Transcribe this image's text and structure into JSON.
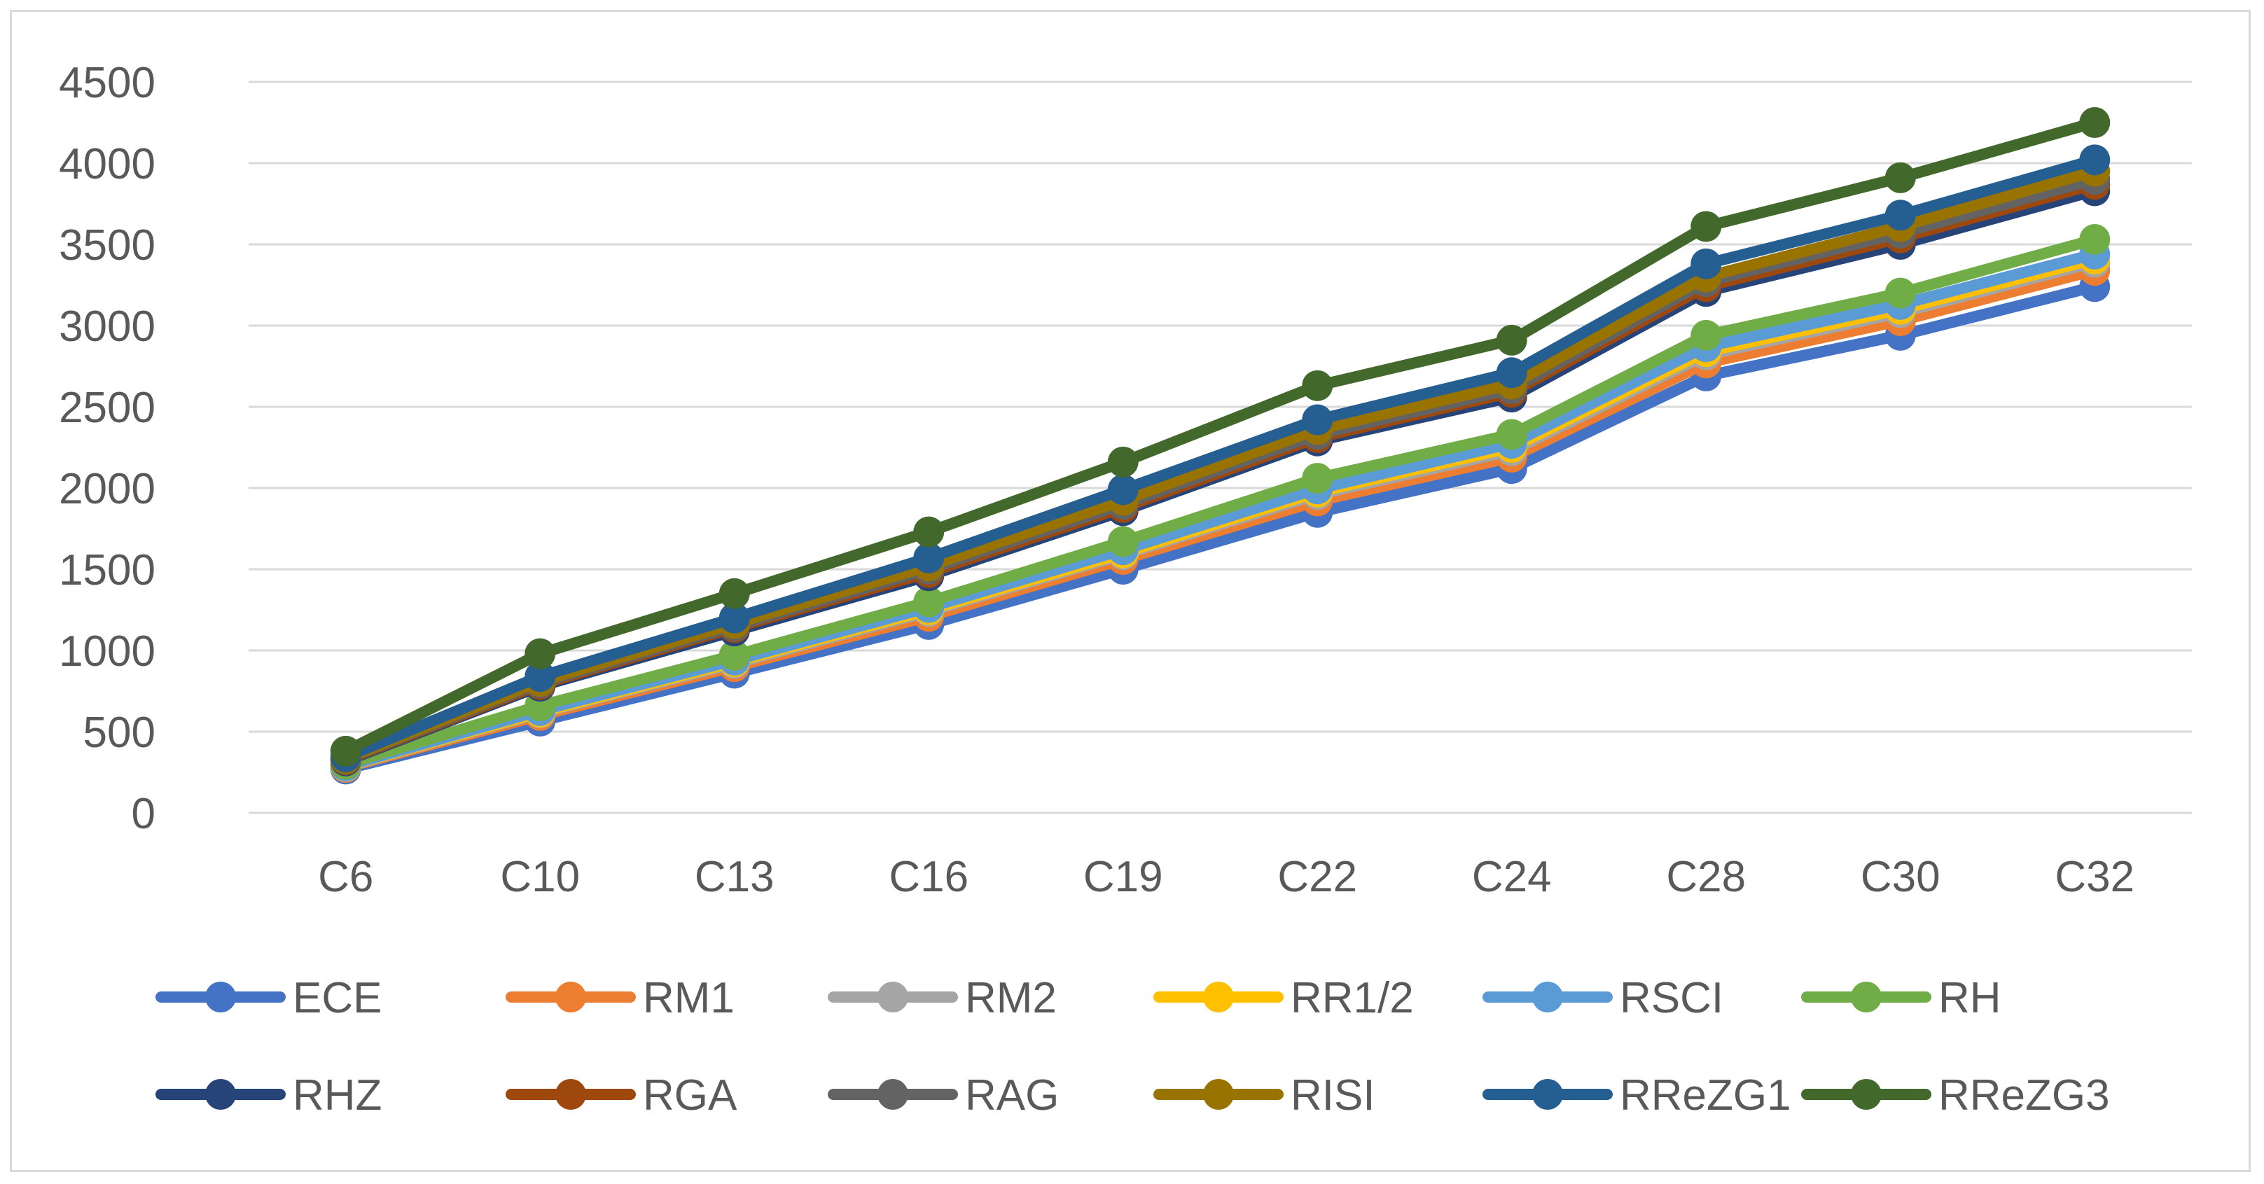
{
  "chart_data": {
    "type": "line",
    "title": "",
    "xlabel": "",
    "ylabel": "",
    "categories": [
      "C6",
      "C10",
      "C13",
      "C16",
      "C19",
      "C22",
      "C24",
      "C28",
      "C30",
      "C32"
    ],
    "ylim": [
      0,
      4500
    ],
    "yticks": [
      0,
      500,
      1000,
      1500,
      2000,
      2500,
      3000,
      3500,
      4000,
      4500
    ],
    "grid": true,
    "legend_position": "bottom",
    "series": [
      {
        "name": "ECE",
        "color": "#4472C4",
        "values": [
          270,
          565,
          860,
          1160,
          1500,
          1850,
          2120,
          2690,
          2940,
          3240
        ]
      },
      {
        "name": "RM1",
        "color": "#ED7D31",
        "values": [
          280,
          600,
          900,
          1210,
          1560,
          1920,
          2190,
          2770,
          3030,
          3340
        ]
      },
      {
        "name": "RM2",
        "color": "#A5A5A5",
        "values": [
          285,
          615,
          920,
          1240,
          1590,
          1960,
          2230,
          2820,
          3080,
          3390
        ]
      },
      {
        "name": "RR1/2",
        "color": "#FFC000",
        "values": [
          288,
          620,
          930,
          1250,
          1600,
          1975,
          2250,
          2840,
          3100,
          3410
        ]
      },
      {
        "name": "RSCI",
        "color": "#5B9BD5",
        "values": [
          290,
          630,
          940,
          1265,
          1620,
          1995,
          2275,
          2870,
          3130,
          3440
        ]
      },
      {
        "name": "RH",
        "color": "#70AD47",
        "values": [
          300,
          660,
          970,
          1300,
          1670,
          2060,
          2330,
          2940,
          3200,
          3530
        ]
      },
      {
        "name": "RHZ",
        "color": "#264478",
        "values": [
          320,
          780,
          1120,
          1460,
          1860,
          2290,
          2560,
          3210,
          3500,
          3830
        ]
      },
      {
        "name": "RGA",
        "color": "#9E480E",
        "values": [
          325,
          790,
          1140,
          1480,
          1880,
          2310,
          2590,
          3240,
          3540,
          3870
        ]
      },
      {
        "name": "RAG",
        "color": "#636363",
        "values": [
          330,
          800,
          1150,
          1500,
          1900,
          2330,
          2610,
          3270,
          3570,
          3900
        ]
      },
      {
        "name": "RISI",
        "color": "#997300",
        "values": [
          335,
          810,
          1165,
          1520,
          1925,
          2360,
          2640,
          3300,
          3610,
          3950
        ]
      },
      {
        "name": "RReZG1",
        "color": "#255E91",
        "values": [
          345,
          840,
          1200,
          1570,
          1990,
          2420,
          2710,
          3380,
          3680,
          4020
        ]
      },
      {
        "name": "RReZG3",
        "color": "#43682B",
        "values": [
          380,
          980,
          1350,
          1730,
          2160,
          2630,
          2910,
          3610,
          3910,
          4250
        ]
      }
    ]
  }
}
